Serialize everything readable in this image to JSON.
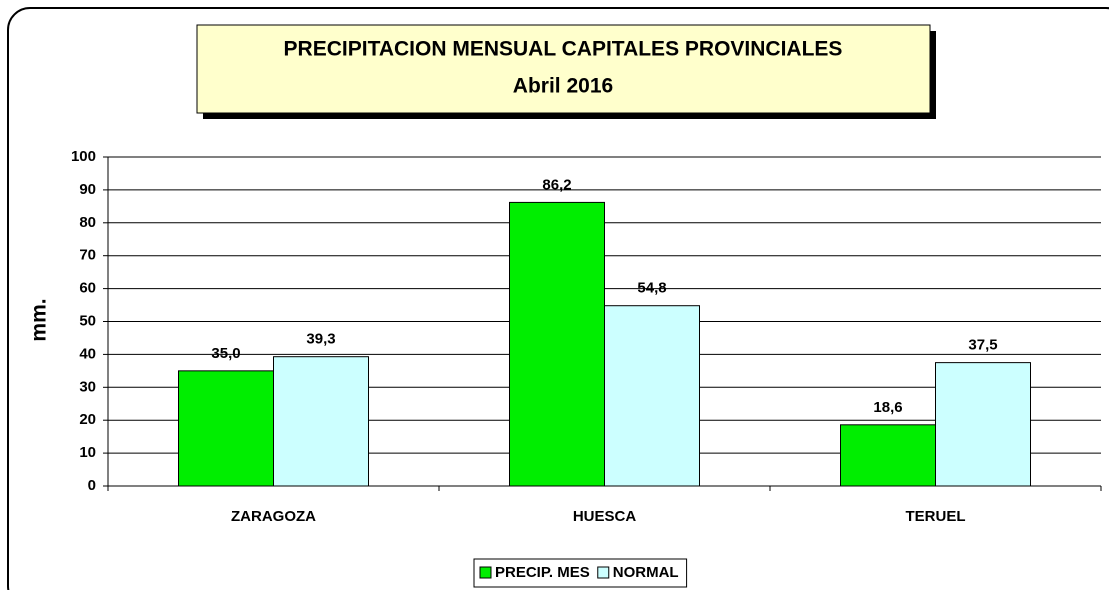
{
  "chart_data": {
    "type": "bar",
    "title": "PRECIPITACION MENSUAL CAPITALES PROVINCIALES",
    "subtitle": "Abril 2016",
    "y_label": "mm.",
    "categories": [
      "ZARAGOZA",
      "HUESCA",
      "TERUEL"
    ],
    "series": [
      {
        "name": "PRECIP. MES",
        "color": "#00ee00",
        "values": [
          35.0,
          86.2,
          18.6
        ],
        "value_labels": [
          "35,0",
          "86,2",
          "18,6"
        ]
      },
      {
        "name": "NORMAL",
        "color": "#ccffff",
        "values": [
          39.3,
          54.8,
          37.5
        ],
        "value_labels": [
          "39,3",
          "54,8",
          "37,5"
        ]
      }
    ],
    "ylim": [
      0,
      100
    ],
    "yticks": [
      0,
      10,
      20,
      30,
      40,
      50,
      60,
      70,
      80,
      90,
      100
    ],
    "grid": true,
    "legend": "bottom"
  }
}
